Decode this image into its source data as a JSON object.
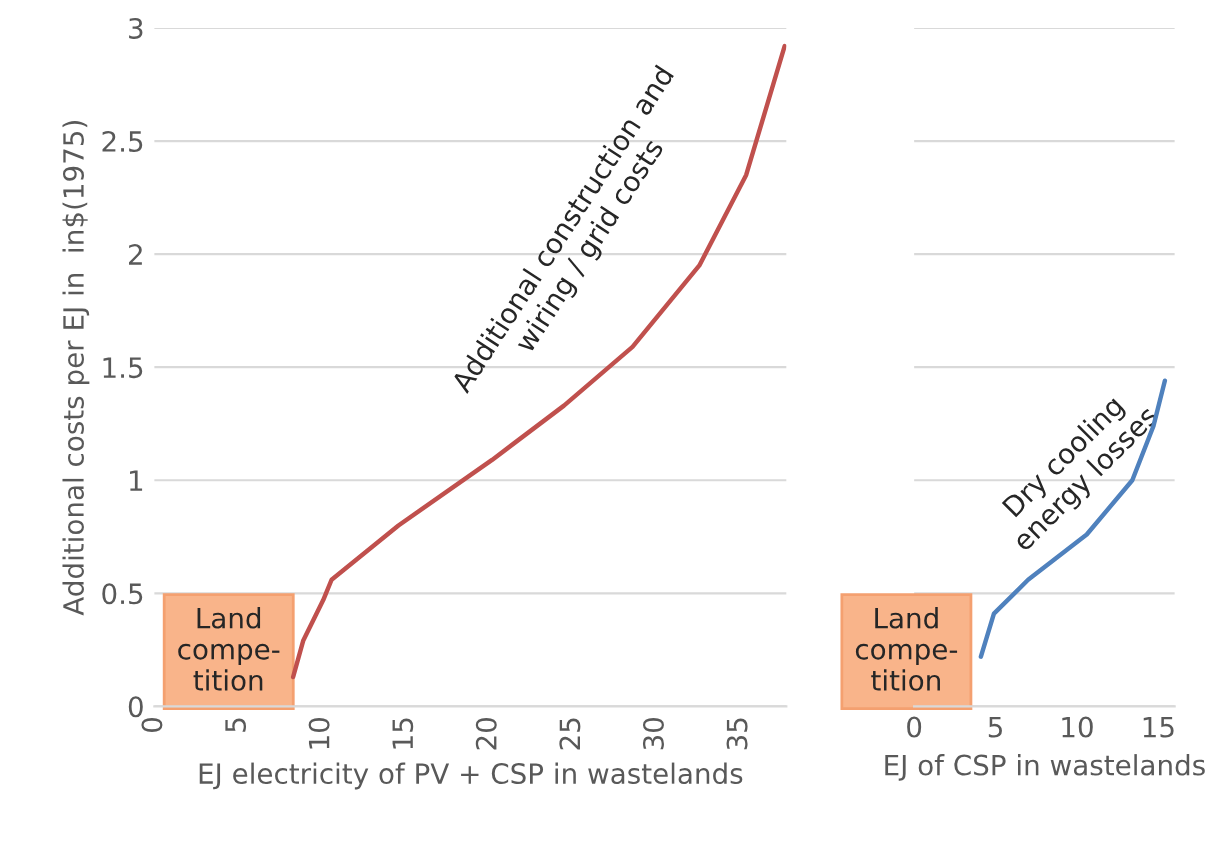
{
  "chart_data": [
    {
      "type": "line",
      "ylabel": "Additional costs per EJ in  in$(1975)",
      "xlabel": "EJ electricity of PV + CSP in wastelands",
      "series": [
        {
          "color": "#c0504d",
          "x": [
            8.3,
            8.9,
            10.1,
            10.6,
            14.6,
            20.2,
            24.5,
            28.6,
            32.6,
            35.4,
            37.7
          ],
          "values": [
            0.13,
            0.29,
            0.47,
            0.56,
            0.8,
            1.09,
            1.33,
            1.59,
            1.95,
            2.35,
            2.92
          ]
        }
      ],
      "xlim": [
        0,
        37.8
      ],
      "xticks": [
        0,
        5,
        10,
        15,
        20,
        25,
        30,
        35
      ],
      "ylim": [
        0,
        3
      ],
      "yticks": [
        0,
        0.5,
        1,
        1.5,
        2,
        2.5,
        3
      ],
      "grid": "y",
      "annotations": [
        "Land\ncompe-\ntition",
        "Additional construction and\nwiring / grid costs"
      ]
    },
    {
      "type": "line",
      "xlabel": "EJ of CSP in wastelands",
      "series": [
        {
          "color": "#4f81bd",
          "x": [
            4.1,
            4.9,
            7.0,
            10.6,
            13.4,
            14.7,
            15.4
          ],
          "values": [
            0.22,
            0.41,
            0.56,
            0.76,
            1.0,
            1.24,
            1.44
          ]
        }
      ],
      "xlim": [
        0,
        16
      ],
      "xticks": [
        0,
        5,
        10,
        15
      ],
      "ylim": [
        0,
        3
      ],
      "yticks": [
        0,
        0.5,
        1,
        1.5,
        2,
        2.5,
        3
      ],
      "grid": "y",
      "tick_labels": "x",
      "annotations": [
        "Land\ncompe-\ntition",
        "Dry cooling\nenergy losses"
      ]
    }
  ]
}
